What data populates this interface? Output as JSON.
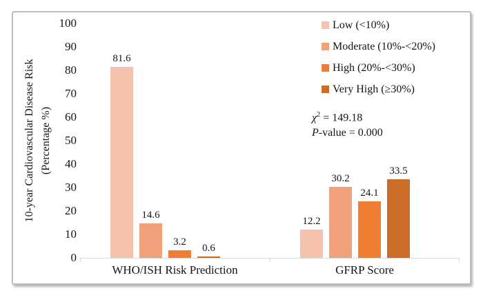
{
  "window": {
    "background_color": "#ffffff",
    "card_border_color": "#bdbdbd"
  },
  "chart_data": {
    "type": "bar",
    "title": "",
    "categories": [
      "WHO/ISH Risk Prediction",
      "GFRP Score"
    ],
    "series": [
      {
        "name": "Low (<10%)",
        "color": "#F5C3AD",
        "values": [
          81.6,
          12.2
        ]
      },
      {
        "name": "Moderate (10%-<20%)",
        "color": "#F0A07B",
        "values": [
          14.6,
          30.2
        ]
      },
      {
        "name": "High (20%-<30%)",
        "color": "#EE7E31",
        "values": [
          3.2,
          24.1
        ]
      },
      {
        "name": "Very High (≥30%)",
        "color": "#CB6C29",
        "values": [
          0.6,
          33.5
        ]
      }
    ],
    "ylabel": "10-year Cardiovascular Disease Risk (Percentage %)",
    "ylabel_lines": [
      "10-year Cardiovascular Disease Risk",
      "(Percentage %)"
    ],
    "xlabel": "",
    "ylim": [
      0,
      100
    ],
    "yticks": [
      0,
      10,
      20,
      30,
      40,
      50,
      60,
      70,
      80,
      90,
      100
    ],
    "grid": false,
    "legend_position": "top-right",
    "value_labels_shown": true,
    "axis_color": "#d9d9d9",
    "annotation": {
      "line1": {
        "symbol": "χ",
        "sup": "2",
        "rest": " = 149.18"
      },
      "line2": {
        "symbol": "P",
        "rest": "-value = 0.000"
      }
    }
  }
}
